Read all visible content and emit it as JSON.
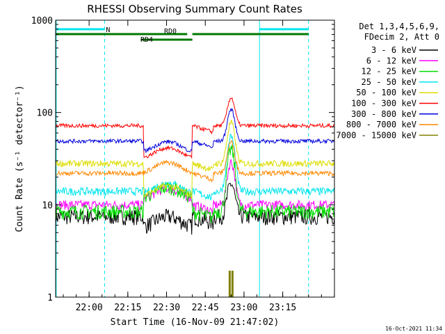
{
  "chart_data": {
    "type": "line",
    "title": "RHESSI Observing Summary Count Rates",
    "xlabel": "Start Time (16-Nov-09 21:47:02)",
    "ylabel": "Count Rate (s⁻¹ detector⁻¹)",
    "y_scale": "log",
    "ylim": [
      1,
      1000
    ],
    "xlim_minutes_from_start": [
      0,
      108
    ],
    "x_ticks": [
      "22:00",
      "22:15",
      "22:30",
      "22:45",
      "23:00",
      "23:15"
    ],
    "y_ticks": [
      "1",
      "10",
      "100",
      "1000"
    ],
    "grid": false,
    "legend_position": "right",
    "legend_header": [
      "Det 1,3,4,5,6,9,",
      "FDecim 2, Att 0"
    ],
    "footer_timestamp": "16-Oct-2021 11:34",
    "flags": [
      {
        "label": "N",
        "color": "#00e5ee",
        "segments": [
          [
            "21:47",
            "22:06"
          ],
          [
            "23:06",
            "23:25"
          ]
        ]
      },
      {
        "label": "RD0",
        "color": "#007800",
        "segments": [
          [
            "21:47",
            "22:38"
          ],
          [
            "22:40",
            "23:25"
          ]
        ]
      },
      {
        "label": "RD4",
        "color": "#007800",
        "segments": [
          [
            "22:20",
            "22:40"
          ]
        ]
      }
    ],
    "vertical_markers": [
      {
        "time": "21:47",
        "color": "#00e5ee",
        "style": "solid"
      },
      {
        "time": "22:06",
        "color": "#00e5ee",
        "style": "dashed"
      },
      {
        "time": "23:06",
        "color": "#00e5ee",
        "style": "solid"
      },
      {
        "time": "23:25",
        "color": "#00e5ee",
        "style": "dashed"
      }
    ],
    "series": [
      {
        "name": "3 - 6 keV",
        "color": "#000000",
        "base": 7.5,
        "mid": 6.5,
        "peak": 17,
        "noise": 0.2
      },
      {
        "name": "6 - 12 keV",
        "color": "#ff00ff",
        "base": 10,
        "mid": 13,
        "peak": 29,
        "noise": 0.12
      },
      {
        "name": "12 - 25 keV",
        "color": "#00dd00",
        "base": 8.5,
        "mid": 13.5,
        "peak": 40,
        "noise": 0.18
      },
      {
        "name": "25 - 50 keV",
        "color": "#00e5ee",
        "base": 14,
        "mid": 15,
        "peak": 55,
        "noise": 0.1
      },
      {
        "name": "50 - 100 keV",
        "color": "#dddd00",
        "base": 28,
        "mid": 14,
        "peak": 78,
        "noise": 0.08
      },
      {
        "name": "100 - 300 keV",
        "color": "#ff0000",
        "base": 72,
        "mid": 36,
        "peak": 145,
        "noise": 0.05
      },
      {
        "name": "300 - 800 keV",
        "color": "#0000dd",
        "base": 49,
        "mid": 42,
        "peak": 108,
        "noise": 0.05
      },
      {
        "name": "800 - 7000 keV",
        "color": "#ff8800",
        "base": 22,
        "mid": 25,
        "peak": 48,
        "noise": 0.06
      },
      {
        "name": "7000 - 15000 keV",
        "color": "#808000",
        "base": null,
        "mid": null,
        "peak": 2.2,
        "noise": 0
      }
    ]
  }
}
